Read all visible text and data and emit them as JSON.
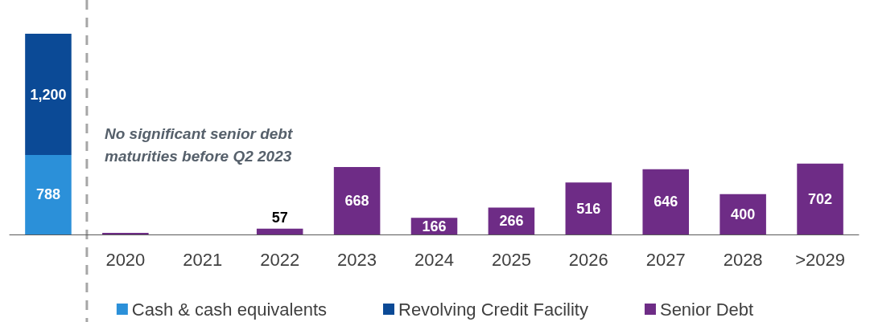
{
  "chart_data": {
    "type": "bar",
    "stacked": true,
    "categories": [
      null,
      "2020",
      "2021",
      "2022",
      "2023",
      "2024",
      "2025",
      "2026",
      "2027",
      "2028",
      ">2029"
    ],
    "series": [
      {
        "name": "Cash & cash equivalents",
        "color": "#2b90d9",
        "values": [
          788,
          null,
          null,
          null,
          null,
          null,
          null,
          null,
          null,
          null,
          null
        ],
        "value_labels": [
          "788",
          null,
          null,
          null,
          null,
          null,
          null,
          null,
          null,
          null,
          null
        ]
      },
      {
        "name": "Revolving Credit Facility",
        "color": "#0b4a96",
        "values": [
          1200,
          null,
          null,
          null,
          null,
          null,
          null,
          null,
          null,
          null,
          null
        ],
        "value_labels": [
          "1,200",
          null,
          null,
          null,
          null,
          null,
          null,
          null,
          null,
          null,
          null
        ]
      },
      {
        "name": "Senior Debt",
        "color": "#6e2c86",
        "values": [
          null,
          15,
          null,
          57,
          668,
          166,
          266,
          516,
          646,
          400,
          702
        ],
        "value_labels": [
          null,
          null,
          null,
          "57",
          "668",
          "166",
          "266",
          "516",
          "646",
          "400",
          "702"
        ]
      }
    ],
    "annotations": [
      "No significant senior debt maturities before Q2 2023"
    ],
    "legend": "bottom"
  }
}
